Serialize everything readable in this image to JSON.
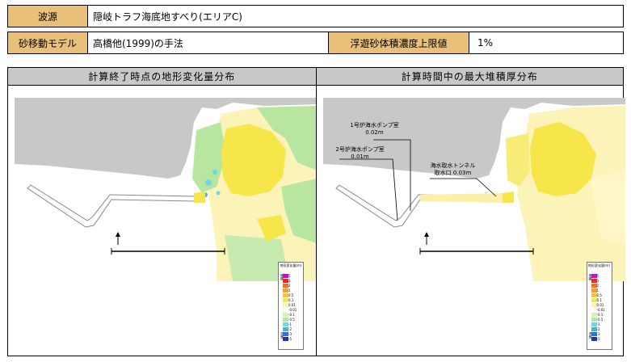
{
  "header": {
    "source_label": "波源",
    "source_value": "隠岐トラフ海底地すべり(エリアC)",
    "model_label": "砂移動モデル",
    "model_value": "高橋他(1999)の手法",
    "limit_label": "浮遊砂体積濃度上限値",
    "limit_value": "1%"
  },
  "panels": {
    "left": {
      "title": "計算終了時点の地形変化量分布",
      "legend_title": "地形変化量(m)",
      "legend_top": "堆積",
      "legend_bottom": "浸食",
      "legend_ticks": [
        "5",
        "3",
        "2",
        "1",
        "0.5",
        "0.1",
        "0.01",
        "-0.01",
        "-0.1",
        "-0.5",
        "-1",
        "-2",
        "-3",
        "-5"
      ]
    },
    "right": {
      "title": "計算時間中の最大堆積厚分布",
      "legend_title": "地形変化量(m)",
      "legend_top": "堆積",
      "legend_bottom": "浸食",
      "legend_ticks": [
        "5",
        "3",
        "2",
        "1",
        "0.5",
        "0.1",
        "0.01",
        "-0.01",
        "-0.1",
        "-0.5",
        "-1",
        "-2",
        "-3",
        "-5"
      ],
      "annotations": {
        "pump1_label": "1号炉海水ポンプ室",
        "pump1_value": "0.02m",
        "pump2_label": "2号炉海水ポンプ室",
        "pump2_value": "0.01m",
        "tunnel_label": "海水取水トンネル",
        "tunnel_value": "取水口 0.03m"
      }
    }
  },
  "colors": {
    "label_bg": "#e8c07a",
    "title_bg": "#c8c8c8",
    "land": "#c8c8c8",
    "deposit_yellow": "#f6e64a",
    "deposit_pale": "#fbf3b8",
    "erosion_green": "#b8e6a0",
    "erosion_cyan": "#6fd8e6"
  }
}
